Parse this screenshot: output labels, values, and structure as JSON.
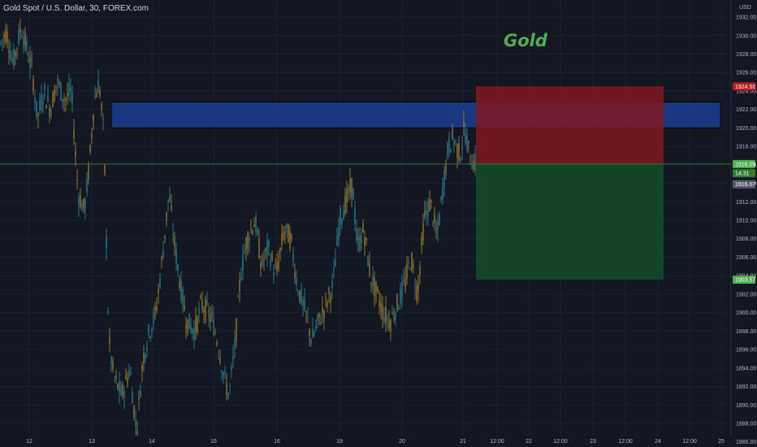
{
  "symbol_title": "Gold Spot / U.S. Dollar, 30, FOREX.com",
  "annotation": "Gold",
  "chart_data": {
    "type": "candlestick",
    "currency_label": "USD",
    "y_ticks": [
      "1932.00",
      "1930.00",
      "1928.00",
      "1926.00",
      "1924.00",
      "1922.00",
      "1920.00",
      "1918.00",
      "1916.00",
      "1914.00",
      "1912.00",
      "1910.00",
      "1908.00",
      "1906.00",
      "1904.00",
      "1902.00",
      "1900.00",
      "1898.00",
      "1896.00",
      "1894.00",
      "1892.00",
      "1890.00",
      "1888.00",
      "1886.00"
    ],
    "y_range": [
      1885.8,
      1933.5
    ],
    "x_ticks": [
      "12",
      "13",
      "14",
      "15",
      "16",
      "19",
      "20",
      "21",
      "12:00",
      "22",
      "12:00",
      "23",
      "12:00",
      "24",
      "12:00",
      "25"
    ],
    "price_badges": [
      {
        "label": "1924.50",
        "value": 1924.5,
        "color": "#b71c1c"
      },
      {
        "label": "1916.09",
        "value": 1916.09,
        "color": "#4caf50"
      },
      {
        "label": "14:31",
        "value": 1915.1,
        "color": "#2e7d32"
      },
      {
        "label": "1916.07",
        "value": 1913.9,
        "color": "#555a66"
      },
      {
        "label": "1903.57",
        "value": 1903.57,
        "color": "#4caf50"
      }
    ],
    "current_price": 1916.09,
    "zones": [
      {
        "type": "supply-zone",
        "color": "#1a3f8f",
        "top": 1922.8,
        "bottom": 1920.0
      },
      {
        "type": "stop-loss",
        "color": "#801922",
        "top": 1924.5,
        "bottom": 1916.09
      },
      {
        "type": "take-profit",
        "color": "#154d2a",
        "top": 1916.09,
        "bottom": 1903.57
      }
    ],
    "series_path": [
      [
        0,
        1929
      ],
      [
        8,
        1930.5
      ],
      [
        16,
        1927
      ],
      [
        26,
        1931
      ],
      [
        32,
        1929
      ],
      [
        40,
        1926
      ],
      [
        46,
        1921
      ],
      [
        54,
        1924
      ],
      [
        62,
        1922
      ],
      [
        70,
        1925
      ],
      [
        80,
        1923
      ],
      [
        88,
        1924
      ],
      [
        96,
        1913
      ],
      [
        104,
        1911
      ],
      [
        110,
        1916
      ],
      [
        116,
        1923
      ],
      [
        122,
        1925
      ],
      [
        128,
        1919
      ],
      [
        132,
        1904
      ],
      [
        134,
        1897
      ],
      [
        140,
        1893
      ],
      [
        150,
        1891
      ],
      [
        160,
        1894
      ],
      [
        168,
        1887
      ],
      [
        176,
        1895
      ],
      [
        184,
        1898
      ],
      [
        192,
        1900
      ],
      [
        200,
        1906
      ],
      [
        208,
        1913
      ],
      [
        214,
        1908
      ],
      [
        222,
        1903
      ],
      [
        230,
        1899
      ],
      [
        240,
        1898
      ],
      [
        248,
        1901
      ],
      [
        256,
        1900
      ],
      [
        262,
        1899
      ],
      [
        270,
        1896
      ],
      [
        276,
        1893
      ],
      [
        282,
        1891
      ],
      [
        290,
        1897
      ],
      [
        296,
        1904
      ],
      [
        304,
        1908
      ],
      [
        314,
        1910
      ],
      [
        322,
        1905
      ],
      [
        330,
        1907
      ],
      [
        340,
        1904
      ],
      [
        350,
        1909
      ],
      [
        358,
        1908
      ],
      [
        366,
        1903
      ],
      [
        376,
        1900
      ],
      [
        384,
        1897
      ],
      [
        392,
        1899
      ],
      [
        402,
        1901
      ],
      [
        410,
        1903
      ],
      [
        418,
        1910
      ],
      [
        426,
        1912
      ],
      [
        434,
        1914
      ],
      [
        440,
        1907
      ],
      [
        448,
        1909
      ],
      [
        456,
        1904
      ],
      [
        464,
        1902
      ],
      [
        472,
        1900
      ],
      [
        480,
        1899
      ],
      [
        490,
        1901
      ],
      [
        498,
        1903
      ],
      [
        506,
        1906
      ],
      [
        514,
        1902
      ],
      [
        522,
        1910
      ],
      [
        530,
        1912
      ],
      [
        538,
        1908
      ],
      [
        546,
        1914
      ],
      [
        552,
        1918
      ],
      [
        558,
        1919
      ],
      [
        566,
        1917
      ],
      [
        572,
        1920
      ],
      [
        578,
        1917
      ],
      [
        586,
        1916
      ]
    ]
  }
}
